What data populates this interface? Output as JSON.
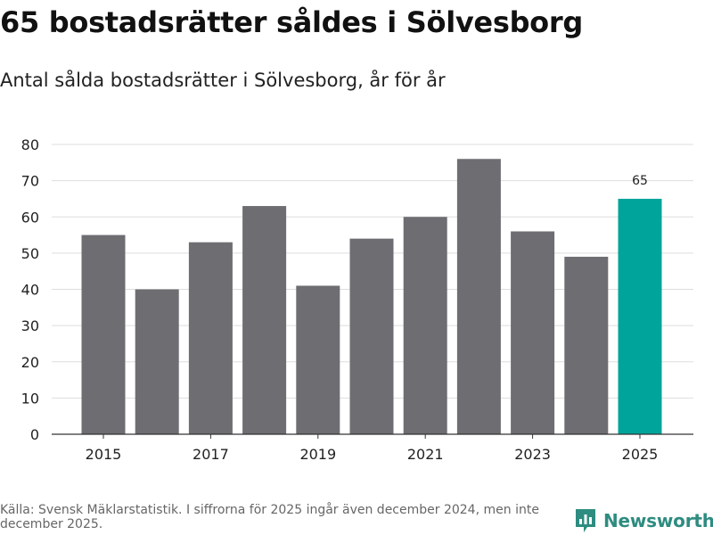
{
  "header": {
    "title": "65 bostadsrätter såldes i Sölvesborg",
    "subtitle": "Antal sålda bostadsrätter i Sölvesborg, år för år"
  },
  "footer": {
    "source": "Källa: Svensk Mäklarstatistik. I siffrorna för 2025 ingår även december 2024, men inte december 2025.",
    "logo_text": "Newsworthy"
  },
  "colors": {
    "bar": "#6e6d72",
    "highlight": "#00a49a",
    "grid": "#dedede",
    "axis": "#333333",
    "logo": "#2e8c80"
  },
  "chart_data": {
    "type": "bar",
    "title": "Antal sålda bostadsrätter i Sölvesborg, år för år",
    "xlabel": "",
    "ylabel": "",
    "categories": [
      "2015",
      "2016",
      "2017",
      "2018",
      "2019",
      "2020",
      "2021",
      "2022",
      "2023",
      "2024",
      "2025"
    ],
    "values": [
      55,
      40,
      53,
      63,
      41,
      54,
      60,
      76,
      56,
      49,
      65
    ],
    "x_tick_labels": [
      "2015",
      "2017",
      "2019",
      "2021",
      "2023",
      "2025"
    ],
    "y_ticks": [
      0,
      10,
      20,
      30,
      40,
      50,
      60,
      70,
      80
    ],
    "ylim": [
      0,
      80
    ],
    "highlight_category": "2025",
    "data_labels": [
      {
        "category": "2025",
        "text": "65"
      }
    ],
    "grid": true
  }
}
